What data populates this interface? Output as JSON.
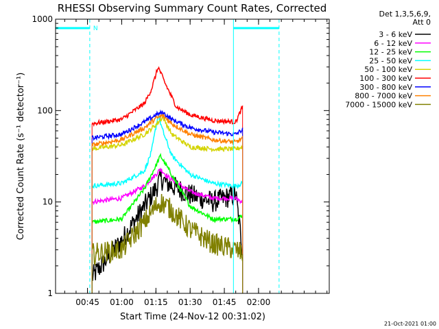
{
  "chart_data": {
    "type": "line",
    "title": "RHESSI Observing Summary Count Rates, Corrected",
    "xlabel": "Start Time (24-Nov-12 00:31:02)",
    "ylabel": "Corrected Count Rate (s⁻¹ detector⁻¹)",
    "y_scale": "log",
    "ylim": [
      1,
      1000
    ],
    "xlim": [
      "00:31",
      "02:31"
    ],
    "x_ticks": [
      "00:45",
      "01:00",
      "01:15",
      "01:30",
      "01:45",
      "02:00"
    ],
    "y_ticks": [
      "1",
      "10",
      "100",
      "1000"
    ],
    "legend_header": [
      "Det 1,3,5,6,9,",
      "Att 0"
    ],
    "legend_position": "right",
    "footer": "21-Oct-2021 01:00",
    "annotations": {
      "night_label": "N",
      "night_intervals": [
        [
          "00:31",
          "00:46"
        ],
        [
          "01:49",
          "02:09"
        ]
      ],
      "data_gap_solid_lines": [
        "00:31",
        "01:49"
      ],
      "night_end_dashed_lines": [
        "00:46",
        "02:09"
      ]
    },
    "series": [
      {
        "name": "3 - 6 keV",
        "color": "#000000",
        "start": "00:47",
        "end": "01:53",
        "x": [
          "00:47",
          "01:00",
          "01:10",
          "01:15",
          "01:17",
          "01:20",
          "01:30",
          "01:40",
          "01:50",
          "01:53"
        ],
        "y": [
          1.5,
          3.8,
          9,
          14,
          18,
          16,
          12,
          10,
          12,
          3
        ]
      },
      {
        "name": "6 - 12 keV",
        "color": "#ff00ff",
        "start": "00:47",
        "end": "01:53",
        "x": [
          "00:47",
          "01:00",
          "01:10",
          "01:15",
          "01:17",
          "01:20",
          "01:30",
          "01:40",
          "01:50",
          "01:53"
        ],
        "y": [
          10,
          11,
          15,
          20,
          23,
          19,
          13,
          11,
          11,
          10
        ]
      },
      {
        "name": "12 - 25 keV",
        "color": "#00ff00",
        "start": "00:47",
        "end": "01:53",
        "x": [
          "00:47",
          "01:00",
          "01:10",
          "01:15",
          "01:17",
          "01:20",
          "01:30",
          "01:40",
          "01:50",
          "01:53"
        ],
        "y": [
          6,
          6.5,
          14,
          25,
          32,
          24,
          9,
          6.5,
          6.5,
          7
        ]
      },
      {
        "name": "25 - 50 keV",
        "color": "#00ffff",
        "start": "00:47",
        "end": "01:53",
        "x": [
          "00:47",
          "01:00",
          "01:10",
          "01:13",
          "01:16",
          "01:18",
          "01:22",
          "01:30",
          "01:40",
          "01:50",
          "01:53"
        ],
        "y": [
          15,
          16,
          22,
          35,
          90,
          60,
          32,
          20,
          16,
          15,
          16
        ]
      },
      {
        "name": "50 - 100 keV",
        "color": "#d4d400",
        "start": "00:47",
        "end": "01:53",
        "x": [
          "00:47",
          "01:00",
          "01:10",
          "01:15",
          "01:18",
          "01:22",
          "01:30",
          "01:40",
          "01:50",
          "01:53"
        ],
        "y": [
          38,
          42,
          55,
          70,
          85,
          55,
          40,
          38,
          38,
          40
        ]
      },
      {
        "name": "100 - 300 keV",
        "color": "#ff0000",
        "start": "00:47",
        "end": "01:53",
        "x": [
          "00:47",
          "01:00",
          "01:10",
          "01:13",
          "01:16",
          "01:19",
          "01:24",
          "01:30",
          "01:40",
          "01:50",
          "01:53"
        ],
        "y": [
          72,
          80,
          120,
          170,
          300,
          200,
          110,
          90,
          78,
          75,
          110
        ]
      },
      {
        "name": "300 - 800 keV",
        "color": "#0000ff",
        "start": "00:47",
        "end": "01:53",
        "x": [
          "00:47",
          "01:00",
          "01:10",
          "01:15",
          "01:18",
          "01:22",
          "01:30",
          "01:40",
          "01:50",
          "01:53"
        ],
        "y": [
          50,
          55,
          75,
          90,
          95,
          80,
          65,
          58,
          55,
          62
        ]
      },
      {
        "name": "800 - 7000 keV",
        "color": "#ff8000",
        "start": "00:47",
        "end": "01:53",
        "x": [
          "00:47",
          "01:00",
          "01:10",
          "01:15",
          "01:18",
          "01:22",
          "01:30",
          "01:40",
          "01:50",
          "01:53"
        ],
        "y": [
          42,
          48,
          65,
          82,
          88,
          72,
          55,
          48,
          45,
          50
        ]
      },
      {
        "name": "7000 - 15000 keV",
        "color": "#808000",
        "start": "00:47",
        "end": "01:53",
        "x": [
          "00:47",
          "01:00",
          "01:10",
          "01:15",
          "01:17",
          "01:20",
          "01:30",
          "01:40",
          "01:50",
          "01:53"
        ],
        "y": [
          2.7,
          3.0,
          6,
          9,
          10,
          9,
          5,
          3.5,
          3,
          2.7
        ]
      }
    ]
  }
}
